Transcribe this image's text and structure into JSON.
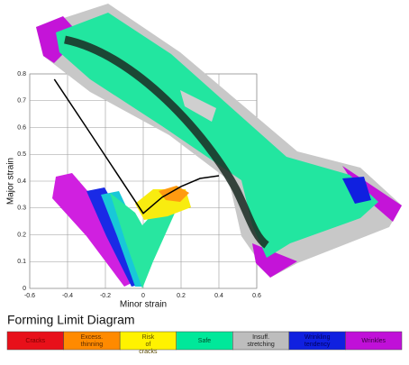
{
  "chart_data": {
    "type": "line",
    "title": "Forming Limit Diagram",
    "xlabel": "Minor strain",
    "ylabel": "Major strain",
    "xlim": [
      -0.6,
      0.6
    ],
    "ylim": [
      0,
      0.8
    ],
    "xticks": [
      -0.6,
      -0.4,
      -0.2,
      0,
      0.2,
      0.4,
      0.6
    ],
    "yticks": [
      0,
      0.1,
      0.2,
      0.3,
      0.4,
      0.5,
      0.6,
      0.7,
      0.8
    ],
    "grid": true,
    "series": [
      {
        "name": "Forming limit curve",
        "color": "#000000",
        "x": [
          -0.47,
          -0.3,
          -0.15,
          0,
          0.1,
          0.2,
          0.3,
          0.4
        ],
        "values": [
          0.78,
          0.6,
          0.44,
          0.28,
          0.34,
          0.38,
          0.41,
          0.42
        ]
      }
    ],
    "legend": [
      {
        "label": "Cracks",
        "color": "#e8101a",
        "text_color": "#7a0000"
      },
      {
        "label": "Excess. thinning",
        "color": "#ff8a00",
        "text_color": "#5a2a00"
      },
      {
        "label": "Risk of cracks",
        "color": "#fff200",
        "text_color": "#5a4a00"
      },
      {
        "label": "Safe",
        "color": "#00e89a",
        "text_color": "#004a2a"
      },
      {
        "label": "Insuff. stretching",
        "color": "#bdbdbd",
        "text_color": "#222222"
      },
      {
        "label": "Wrinkling tendency",
        "color": "#1020e0",
        "text_color": "#00005a"
      },
      {
        "label": "Wrinkles",
        "color": "#c010d8",
        "text_color": "#3a0040"
      }
    ]
  }
}
